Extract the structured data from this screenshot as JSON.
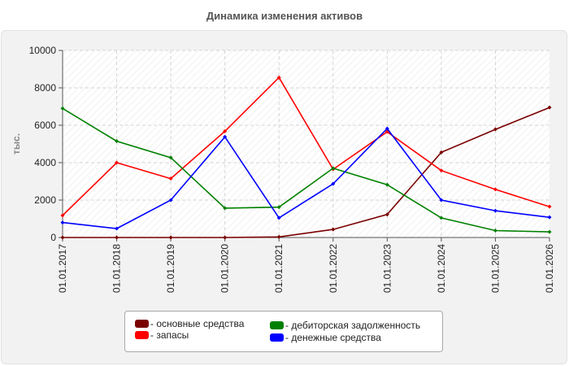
{
  "chart_data": {
    "type": "line",
    "title": "Динамика изменения активов",
    "ylabel": "тыс.",
    "xlabel": "",
    "categories": [
      "01.01.2017",
      "01.01.2018",
      "01.01.2019",
      "01.01.2020",
      "01.01.2021",
      "01.01.2022",
      "01.01.2023",
      "01.01.2024",
      "01.01.2025",
      "01.01.2026"
    ],
    "ylim": [
      0,
      10000
    ],
    "yticks": [
      "0",
      "2000",
      "4000",
      "6000",
      "8000",
      "10000"
    ],
    "grid": true,
    "legend_position": "bottom",
    "series": [
      {
        "name": "- основные средства",
        "color": "#7a0000",
        "values": [
          0,
          0,
          0,
          0,
          30,
          430,
          1230,
          4550,
          5780,
          6950
        ]
      },
      {
        "name": "- запасы",
        "color": "#ff0000",
        "values": [
          1180,
          4000,
          3150,
          5680,
          8550,
          3650,
          5650,
          3580,
          2570,
          1650
        ]
      },
      {
        "name": "- дебиторская задолженность",
        "color": "#008000",
        "values": [
          6900,
          5150,
          4270,
          1570,
          1620,
          3700,
          2820,
          1050,
          370,
          300
        ]
      },
      {
        "name": "- денежные средства",
        "color": "#0000ff",
        "values": [
          800,
          480,
          2000,
          5380,
          1050,
          2870,
          5820,
          2000,
          1430,
          1080
        ]
      }
    ]
  }
}
